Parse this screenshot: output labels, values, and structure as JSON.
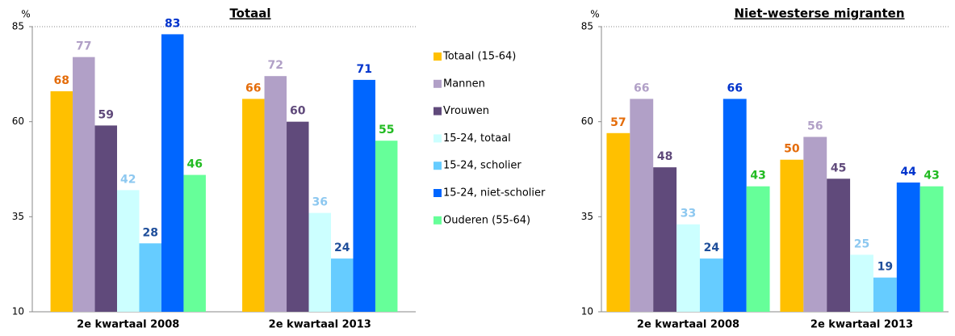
{
  "chart_data": [
    {
      "type": "bar",
      "title": "Totaal",
      "y_label": "%",
      "categories": [
        "2e kwartaal 2008",
        "2e kwartaal 2013"
      ],
      "ylim": [
        10,
        85
      ],
      "yticks": [
        10,
        35,
        60,
        85
      ],
      "series": [
        {
          "name": "Totaal (15-64)",
          "color": "#FFC000",
          "label_color": "#E46C0A",
          "values": [
            68,
            66
          ]
        },
        {
          "name": "Mannen",
          "color": "#B1A0C7",
          "label_color": "#B1A0C7",
          "values": [
            77,
            72
          ]
        },
        {
          "name": "Vrouwen",
          "color": "#604A7B",
          "label_color": "#604A7B",
          "values": [
            59,
            60
          ]
        },
        {
          "name": "15-24, totaal",
          "color": "#CCFFFF",
          "label_color": "#8DC8F0",
          "values": [
            42,
            36
          ]
        },
        {
          "name": "15-24, scholier",
          "color": "#66CCFF",
          "label_color": "#1F4E9A",
          "values": [
            28,
            24
          ]
        },
        {
          "name": "15-24, niet-scholier",
          "color": "#0066FF",
          "label_color": "#0033CC",
          "values": [
            83,
            71
          ]
        },
        {
          "name": "Ouderen (55-64)",
          "color": "#66FF99",
          "label_color": "#22BB22",
          "values": [
            46,
            55
          ]
        }
      ]
    },
    {
      "type": "bar",
      "title": "Niet-westerse migranten",
      "y_label": "%",
      "categories": [
        "2e kwartaal 2008",
        "2e kwartaal 2013"
      ],
      "ylim": [
        10,
        85
      ],
      "yticks": [
        10,
        35,
        60,
        85
      ],
      "series": [
        {
          "color": "#FFC000",
          "label_color": "#E46C0A",
          "values": [
            57,
            50
          ]
        },
        {
          "color": "#B1A0C7",
          "label_color": "#B1A0C7",
          "values": [
            66,
            56
          ]
        },
        {
          "color": "#604A7B",
          "label_color": "#604A7B",
          "values": [
            48,
            45
          ]
        },
        {
          "color": "#CCFFFF",
          "label_color": "#8DC8F0",
          "values": [
            33,
            25
          ]
        },
        {
          "color": "#66CCFF",
          "label_color": "#1F4E9A",
          "values": [
            24,
            19
          ]
        },
        {
          "color": "#0066FF",
          "label_color": "#0033CC",
          "values": [
            66,
            44
          ]
        },
        {
          "color": "#66FF99",
          "label_color": "#22BB22",
          "values": [
            43,
            43
          ]
        }
      ]
    }
  ]
}
